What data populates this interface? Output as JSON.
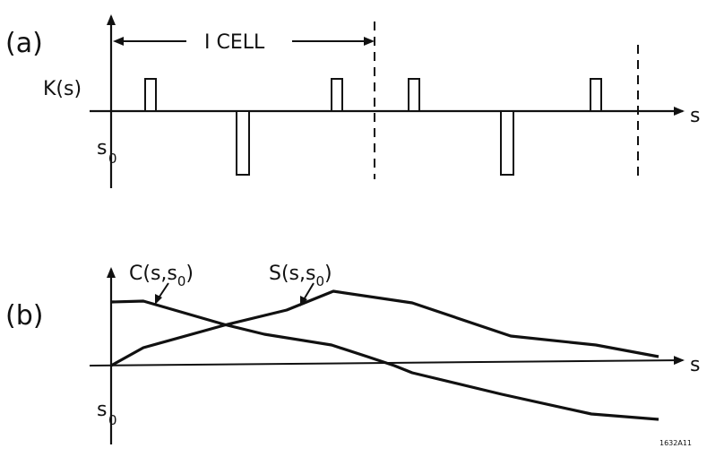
{
  "panel_a": {
    "label": "(a)",
    "cell_label": "I  CELL",
    "y_label": "K(s)",
    "x_label": "s",
    "origin_label": "s",
    "origin_subscript": "0",
    "figure_id": "1632A11"
  },
  "panel_b": {
    "label": "(b)",
    "x_label": "s",
    "origin_label": "s",
    "origin_subscript": "0",
    "curve_c_label": "C(s,s",
    "curve_c_suffix": ")",
    "curve_s_label": "S(s,s",
    "curve_s_suffix": ")",
    "sub_zero": "0"
  },
  "colors": {
    "ink": "#111111",
    "background": "#ffffff"
  }
}
